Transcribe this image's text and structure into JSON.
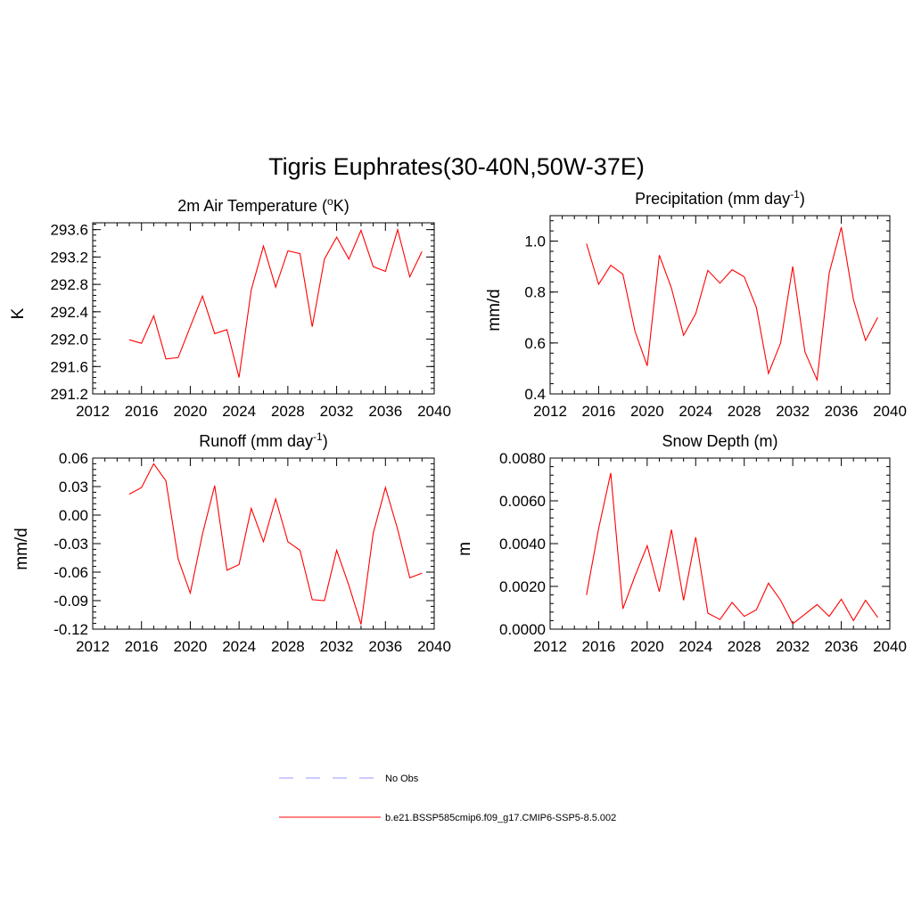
{
  "figure": {
    "title": "Tigris Euphrates(30-40N,50W-37E)"
  },
  "chart_data": [
    {
      "type": "line",
      "title": "2m Air Temperature (",
      "title_super": "o",
      "title_after": "K)",
      "xlabel": "",
      "ylabel": "K",
      "xlim": [
        2012,
        2040
      ],
      "ylim": [
        291.2,
        293.7
      ],
      "xticks": [
        2012,
        2016,
        2020,
        2024,
        2028,
        2032,
        2036,
        2040
      ],
      "xticklabels": [
        "2012",
        "2016",
        "2020",
        "2024",
        "2028",
        "2032",
        "2036",
        "2040"
      ],
      "yticks": [
        291.2,
        291.6,
        292.0,
        292.4,
        292.8,
        293.2,
        293.6
      ],
      "yticklabels": [
        "291.2",
        "291.6",
        "292.0",
        "292.4",
        "292.8",
        "293.2",
        "293.6"
      ],
      "x": [
        2015,
        2016,
        2017,
        2018,
        2019,
        2020,
        2021,
        2022,
        2023,
        2024,
        2025,
        2026,
        2027,
        2028,
        2029,
        2030,
        2031,
        2032,
        2033,
        2034,
        2035,
        2036,
        2037,
        2038,
        2039
      ],
      "series": [
        {
          "name": "b.e21.BSSP585cmip6.f09_g17.CMIP6-SSP5-8.5.002",
          "color": "#ff0000",
          "values": [
            291.99,
            291.94,
            292.34,
            291.71,
            291.73,
            292.18,
            292.63,
            292.08,
            292.14,
            291.44,
            292.72,
            293.36,
            292.76,
            293.29,
            293.25,
            292.18,
            293.17,
            293.49,
            293.17,
            293.59,
            293.06,
            292.99,
            293.6,
            292.91,
            293.28
          ]
        }
      ]
    },
    {
      "type": "line",
      "title": "Precipitation (mm day",
      "title_super": "-1",
      "title_after": ")",
      "xlabel": "",
      "ylabel": "mm/d",
      "xlim": [
        2012,
        2040
      ],
      "ylim": [
        0.4,
        1.1
      ],
      "xticks": [
        2012,
        2016,
        2020,
        2024,
        2028,
        2032,
        2036,
        2040
      ],
      "xticklabels": [
        "2012",
        "2016",
        "2020",
        "2024",
        "2028",
        "2032",
        "2036",
        "2040"
      ],
      "yticks": [
        0.4,
        0.6,
        0.8,
        1.0
      ],
      "yticklabels": [
        "0.4",
        "0.6",
        "0.8",
        "1.0"
      ],
      "x": [
        2015,
        2016,
        2017,
        2018,
        2019,
        2020,
        2021,
        2022,
        2023,
        2024,
        2025,
        2026,
        2027,
        2028,
        2029,
        2030,
        2031,
        2032,
        2033,
        2034,
        2035,
        2036,
        2037,
        2038,
        2039
      ],
      "series": [
        {
          "name": "b.e21.BSSP585cmip6.f09_g17.CMIP6-SSP5-8.5.002",
          "color": "#ff0000",
          "values": [
            0.99,
            0.83,
            0.905,
            0.87,
            0.645,
            0.51,
            0.945,
            0.815,
            0.63,
            0.715,
            0.885,
            0.835,
            0.888,
            0.86,
            0.74,
            0.48,
            0.6,
            0.9,
            0.565,
            0.455,
            0.875,
            1.055,
            0.77,
            0.61,
            0.7
          ]
        }
      ]
    },
    {
      "type": "line",
      "title": "Runoff (mm day",
      "title_super": "-1",
      "title_after": ")",
      "xlabel": "",
      "ylabel": "mm/d",
      "xlim": [
        2012,
        2040
      ],
      "ylim": [
        -0.12,
        0.06
      ],
      "xticks": [
        2012,
        2016,
        2020,
        2024,
        2028,
        2032,
        2036,
        2040
      ],
      "xticklabels": [
        "2012",
        "2016",
        "2020",
        "2024",
        "2028",
        "2032",
        "2036",
        "2040"
      ],
      "yticks": [
        -0.12,
        -0.09,
        -0.06,
        -0.03,
        0.0,
        0.03,
        0.06
      ],
      "yticklabels": [
        "-0.12",
        "-0.09",
        "-0.06",
        "-0.03",
        "0.00",
        "0.03",
        "0.06"
      ],
      "x": [
        2015,
        2016,
        2017,
        2018,
        2019,
        2020,
        2021,
        2022,
        2023,
        2024,
        2025,
        2026,
        2027,
        2028,
        2029,
        2030,
        2031,
        2032,
        2033,
        2034,
        2035,
        2036,
        2037,
        2038,
        2039
      ],
      "series": [
        {
          "name": "b.e21.BSSP585cmip6.f09_g17.CMIP6-SSP5-8.5.002",
          "color": "#ff0000",
          "values": [
            0.022,
            0.029,
            0.054,
            0.036,
            -0.046,
            -0.082,
            -0.02,
            0.031,
            -0.058,
            -0.052,
            0.007,
            -0.028,
            0.017,
            -0.028,
            -0.037,
            -0.089,
            -0.09,
            -0.037,
            -0.074,
            -0.115,
            -0.019,
            0.029,
            -0.015,
            -0.066,
            -0.061
          ]
        }
      ]
    },
    {
      "type": "line",
      "title": "Snow Depth (m)",
      "title_super": "",
      "title_after": "",
      "xlabel": "",
      "ylabel": "m",
      "xlim": [
        2012,
        2040
      ],
      "ylim": [
        0.0,
        0.008
      ],
      "xticks": [
        2012,
        2016,
        2020,
        2024,
        2028,
        2032,
        2036,
        2040
      ],
      "xticklabels": [
        "2012",
        "2016",
        "2020",
        "2024",
        "2028",
        "2032",
        "2036",
        "2040"
      ],
      "yticks": [
        0.0,
        0.002,
        0.004,
        0.006,
        0.008
      ],
      "yticklabels": [
        "0.0000",
        "0.0020",
        "0.0040",
        "0.0060",
        "0.0080"
      ],
      "x": [
        2015,
        2016,
        2017,
        2018,
        2019,
        2020,
        2021,
        2022,
        2023,
        2024,
        2025,
        2026,
        2027,
        2028,
        2029,
        2030,
        2031,
        2032,
        2033,
        2034,
        2035,
        2036,
        2037,
        2038,
        2039
      ],
      "series": [
        {
          "name": "b.e21.BSSP585cmip6.f09_g17.CMIP6-SSP5-8.5.002",
          "color": "#ff0000",
          "values": [
            0.0016,
            0.0047,
            0.0073,
            0.00095,
            0.0025,
            0.0039,
            0.00175,
            0.00465,
            0.00135,
            0.0043,
            0.00075,
            0.00045,
            0.00125,
            0.0006,
            0.0009,
            0.00215,
            0.00135,
            0.00025,
            0.0007,
            0.00115,
            0.0006,
            0.0014,
            0.0004,
            0.00135,
            0.00055
          ]
        }
      ]
    }
  ],
  "legend": {
    "items": [
      {
        "label": "No Obs",
        "color": "#9999ff",
        "style": "dashed"
      },
      {
        "label": "b.e21.BSSP585cmip6.f09_g17.CMIP6-SSP5-8.5.002",
        "color": "#ff0000",
        "style": "solid"
      }
    ]
  }
}
